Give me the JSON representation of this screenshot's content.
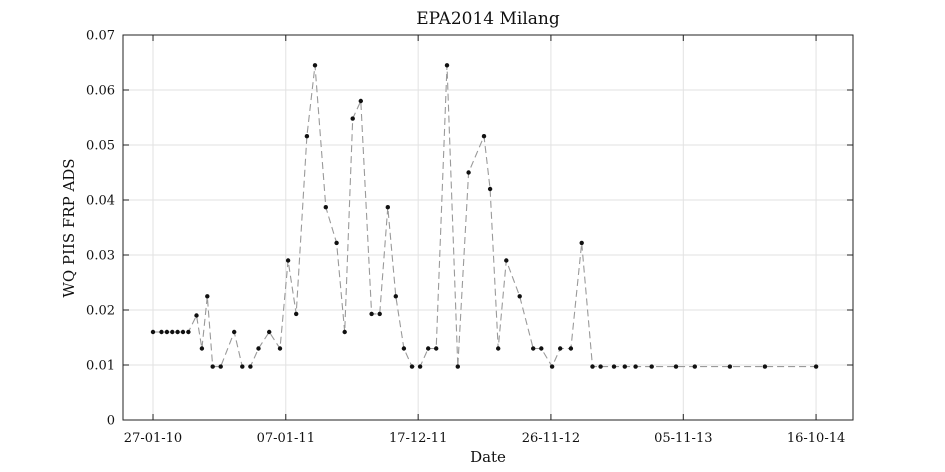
{
  "chart_data": {
    "type": "line",
    "title": "EPA2014 Milang",
    "xlabel": "Date",
    "ylabel": "WQ PIIS FRP ADS",
    "ylim": [
      0,
      0.07
    ],
    "xlim": [
      "2009-11-10",
      "2015-01-20"
    ],
    "x_ticks": [
      {
        "date": "2010-01-27",
        "label": "27-01-10"
      },
      {
        "date": "2011-01-07",
        "label": "07-01-11"
      },
      {
        "date": "2011-12-17",
        "label": "17-12-11"
      },
      {
        "date": "2012-11-26",
        "label": "26-11-12"
      },
      {
        "date": "2013-11-05",
        "label": "05-11-13"
      },
      {
        "date": "2014-10-16",
        "label": "16-10-14"
      }
    ],
    "y_ticks": [
      {
        "value": 0,
        "label": "0"
      },
      {
        "value": 0.01,
        "label": "0.01"
      },
      {
        "value": 0.02,
        "label": "0.02"
      },
      {
        "value": 0.03,
        "label": "0.03"
      },
      {
        "value": 0.04,
        "label": "0.04"
      },
      {
        "value": 0.05,
        "label": "0.05"
      },
      {
        "value": 0.06,
        "label": "0.06"
      },
      {
        "value": 0.07,
        "label": "0.07"
      }
    ],
    "grid": true,
    "line_style": "dashed",
    "line_color": "#9a9a9a",
    "marker_color": "#111111",
    "series": [
      {
        "x": [
          "2010-01-27",
          "2010-02-18",
          "2010-03-04",
          "2010-03-18",
          "2010-04-01",
          "2010-04-15",
          "2010-04-29",
          "2010-05-20",
          "2010-06-03",
          "2010-06-17",
          "2010-07-01",
          "2010-07-22",
          "2010-08-26",
          "2010-09-16",
          "2010-10-07",
          "2010-10-28",
          "2010-11-25",
          "2010-12-23",
          "2011-01-13",
          "2011-02-03",
          "2011-03-03",
          "2011-03-24",
          "2011-04-21",
          "2011-05-19",
          "2011-06-09",
          "2011-06-30",
          "2011-07-21",
          "2011-08-18",
          "2011-09-08",
          "2011-09-29",
          "2011-10-20",
          "2011-11-10",
          "2011-12-01",
          "2011-12-22",
          "2012-01-12",
          "2012-02-02",
          "2012-03-01",
          "2012-03-29",
          "2012-04-26",
          "2012-06-05",
          "2012-06-21",
          "2012-07-12",
          "2012-08-02",
          "2012-09-06",
          "2012-10-11",
          "2012-11-01",
          "2012-11-29",
          "2012-12-20",
          "2013-01-17",
          "2013-02-14",
          "2013-03-14",
          "2013-04-04",
          "2013-05-09",
          "2013-06-06",
          "2013-07-04",
          "2013-08-15",
          "2013-10-17",
          "2013-12-05",
          "2014-03-06",
          "2014-06-05",
          "2014-10-16"
        ],
        "y": [
          0.016,
          0.016,
          0.016,
          0.016,
          0.016,
          0.016,
          0.016,
          0.019,
          0.013,
          0.0225,
          0.0097,
          0.0097,
          0.016,
          0.0097,
          0.0097,
          0.013,
          0.016,
          0.013,
          0.029,
          0.0193,
          0.0516,
          0.0645,
          0.0387,
          0.0322,
          0.016,
          0.0548,
          0.058,
          0.0193,
          0.0193,
          0.0387,
          0.0225,
          0.013,
          0.0097,
          0.0097,
          0.013,
          0.013,
          0.0645,
          0.0097,
          0.045,
          0.0516,
          0.042,
          0.013,
          0.029,
          0.0225,
          0.013,
          0.013,
          0.0097,
          0.013,
          0.013,
          0.0322,
          0.0097,
          0.0097,
          0.0097,
          0.0097,
          0.0097,
          0.0097,
          0.0097,
          0.0097,
          0.0097,
          0.0097,
          0.0097
        ]
      }
    ]
  }
}
